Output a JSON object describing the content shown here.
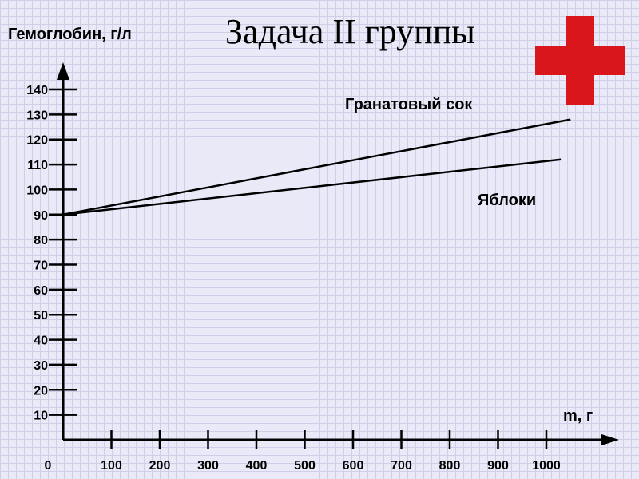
{
  "slide": {
    "title": "Задача II группы"
  },
  "icon": {
    "name": "red-cross-icon",
    "color": "#d9161c"
  },
  "chart_data": {
    "type": "line",
    "title": "",
    "ylabel": "Гемоглобин, г/л",
    "xlabel": "m, г",
    "x_ticks": [
      0,
      100,
      200,
      300,
      400,
      500,
      600,
      700,
      800,
      900,
      1000
    ],
    "y_ticks": [
      10,
      20,
      30,
      40,
      50,
      60,
      70,
      80,
      90,
      100,
      110,
      120,
      130,
      140
    ],
    "xlim": [
      0,
      1000
    ],
    "ylim": [
      0,
      140
    ],
    "series": [
      {
        "name": "Гранатовый сок",
        "x": [
          0,
          1050
        ],
        "y": [
          90,
          128
        ]
      },
      {
        "name": "Яблоки",
        "x": [
          0,
          1030
        ],
        "y": [
          90,
          112
        ]
      }
    ]
  }
}
